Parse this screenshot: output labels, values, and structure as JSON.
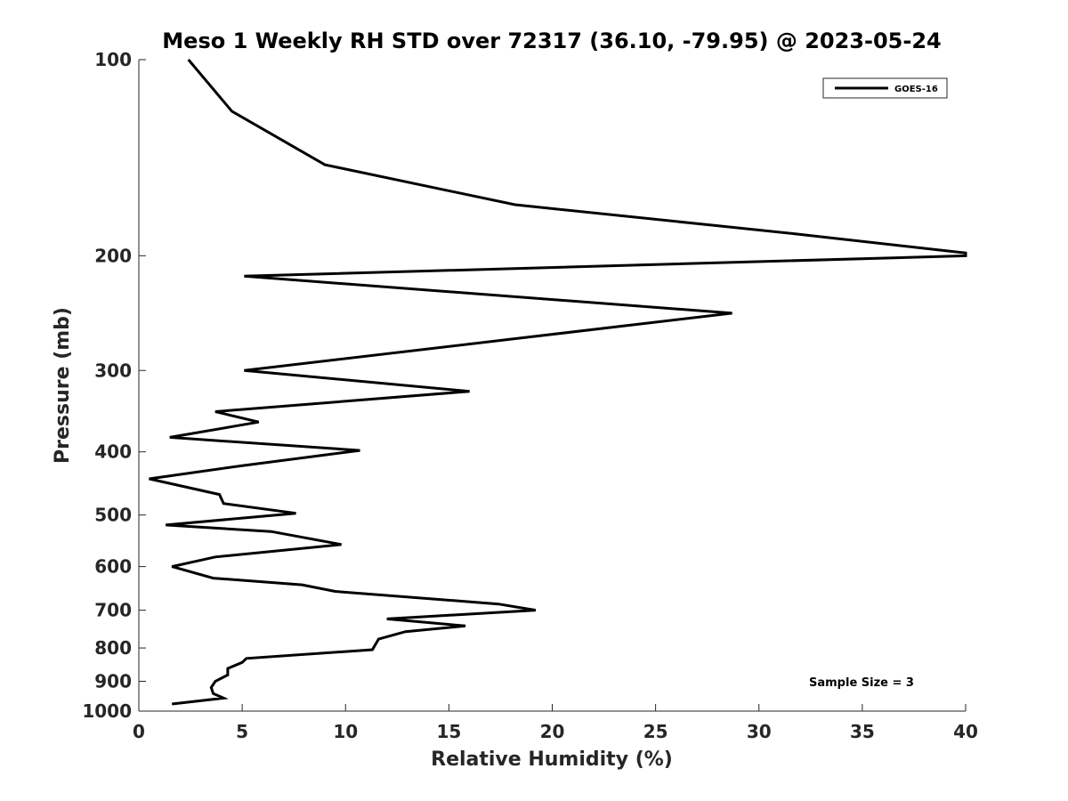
{
  "chart_data": {
    "type": "line",
    "title": "Meso 1 Weekly RH STD over 72317 (36.10, -79.95) @ 2023-05-24",
    "xlabel": "Relative Humidity (%)",
    "ylabel": "Pressure (mb)",
    "xlim": [
      0,
      40
    ],
    "ylim": [
      100,
      1000
    ],
    "y_scale": "log",
    "y_reversed": true,
    "xticks": [
      0,
      5,
      10,
      15,
      20,
      25,
      30,
      35,
      40
    ],
    "yticks": [
      100,
      200,
      300,
      400,
      500,
      600,
      700,
      800,
      900,
      1000
    ],
    "grid": false,
    "legend_position": "top-right",
    "annotation": "Sample Size = 3",
    "series": [
      {
        "name": "GOES-16",
        "color": "#000000",
        "x": [
          2.4,
          4.5,
          9.0,
          18.2,
          31.7,
          40.0,
          40.0,
          5.1,
          28.7,
          5.1,
          16.0,
          3.7,
          5.8,
          1.5,
          10.7,
          5.0,
          0.5,
          3.9,
          4.1,
          7.6,
          1.3,
          6.4,
          9.8,
          3.7,
          1.6,
          3.6,
          7.9,
          9.5,
          17.4,
          19.2,
          12.0,
          15.8,
          12.9,
          11.6,
          11.5,
          11.3,
          5.2,
          5.0,
          4.3,
          4.3,
          3.7,
          3.5,
          3.6,
          4.1,
          1.6
        ],
        "y": [
          100,
          120,
          145,
          167,
          185,
          198,
          200,
          215,
          245,
          300,
          323,
          347,
          360,
          380,
          398,
          420,
          440,
          465,
          480,
          497,
          518,
          530,
          555,
          580,
          600,
          625,
          640,
          655,
          685,
          700,
          722,
          740,
          755,
          775,
          785,
          805,
          830,
          842,
          860,
          880,
          900,
          920,
          940,
          955,
          975
        ]
      }
    ]
  }
}
